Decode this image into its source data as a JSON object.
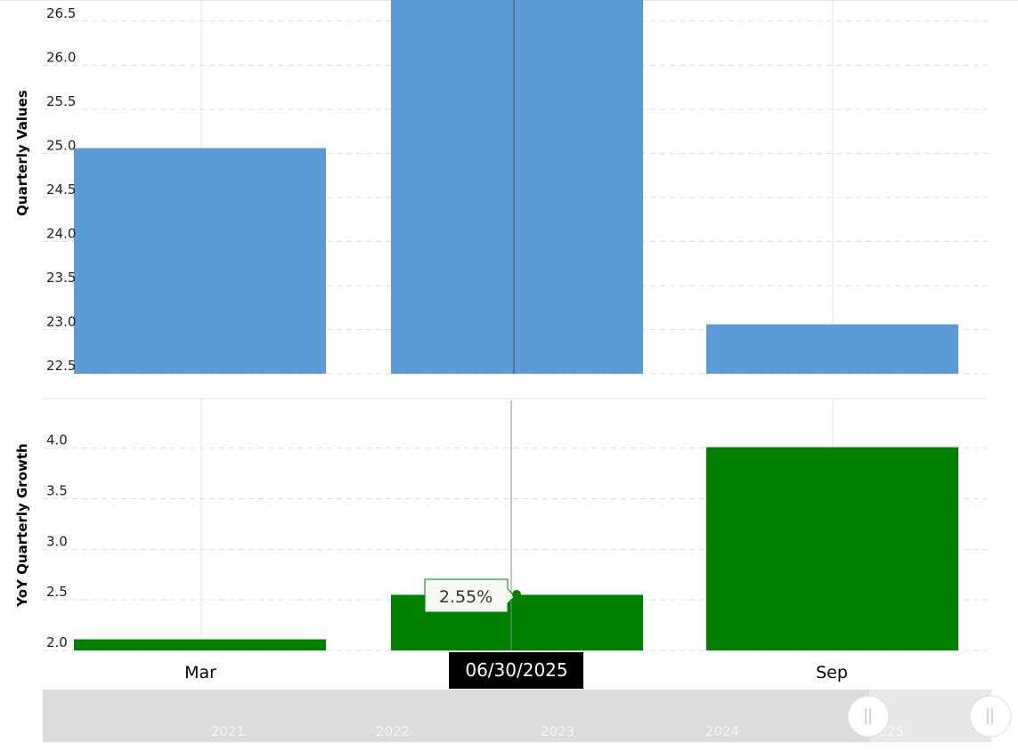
{
  "chart_data": [
    {
      "type": "bar",
      "ylabel": "Quarterly Values",
      "categories": [
        "Mar",
        "06/30/2025",
        "Sep"
      ],
      "values": [
        25.06,
        26.74,
        23.06
      ],
      "ylim": [
        22.5,
        26.74
      ],
      "yticks": [
        "22.5",
        "23.0",
        "23.5",
        "24.0",
        "24.5",
        "25.0",
        "25.5",
        "26.0",
        "26.5"
      ],
      "grid": true,
      "color": "#5b9bd5"
    },
    {
      "type": "bar",
      "ylabel": "YoY Quarterly Growth",
      "categories": [
        "Mar",
        "06/30/2025",
        "Sep"
      ],
      "values": [
        2.11,
        2.55,
        4.01
      ],
      "ylim": [
        2.0,
        4.49
      ],
      "yticks": [
        "2.0",
        "2.5",
        "3.0",
        "3.5",
        "4.0"
      ],
      "grid": true,
      "color": "#008000"
    }
  ],
  "xaxis": {
    "labels": [
      "Mar",
      "",
      "Sep"
    ],
    "crosshair_label": "06/30/2025"
  },
  "tooltip": {
    "text": "2.55%"
  },
  "navigator": {
    "years": [
      "2021",
      "2022",
      "2023",
      "2024",
      "2025"
    ]
  }
}
